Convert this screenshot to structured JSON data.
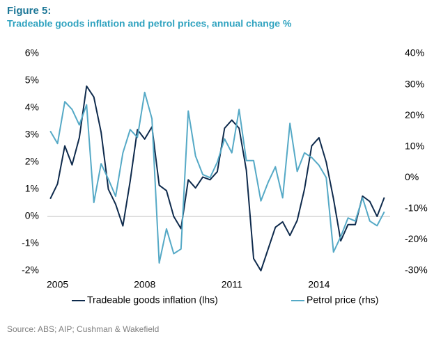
{
  "chart_data": {
    "type": "line",
    "title": "Figure 5:",
    "subtitle": "Tradeable goods inflation and petrol prices, annual change %",
    "source": "Source: ABS; AIP; Cushman & Wakefield",
    "x": [
      2004.75,
      2005,
      2005.25,
      2005.5,
      2005.75,
      2006,
      2006.25,
      2006.5,
      2006.75,
      2007,
      2007.25,
      2007.5,
      2007.75,
      2008,
      2008.25,
      2008.5,
      2008.75,
      2009,
      2009.25,
      2009.5,
      2009.75,
      2010,
      2010.25,
      2010.5,
      2010.75,
      2011,
      2011.25,
      2011.5,
      2011.75,
      2012,
      2012.25,
      2012.5,
      2012.75,
      2013,
      2013.25,
      2013.5,
      2013.75,
      2014,
      2014.25,
      2014.5,
      2014.75,
      2015,
      2015.25,
      2015.5,
      2015.75,
      2016,
      2016.25
    ],
    "xlim": [
      2004.65,
      2016.45
    ],
    "xticks": [
      2005,
      2008,
      2011,
      2014
    ],
    "ylim": [
      -2,
      6
    ],
    "yticks": [
      {
        "value": -2,
        "label": "-2%"
      },
      {
        "value": -1,
        "label": "-1%"
      },
      {
        "value": 0,
        "label": "0%"
      },
      {
        "value": 1,
        "label": "1%"
      },
      {
        "value": 2,
        "label": "2%"
      },
      {
        "value": 3,
        "label": "3%"
      },
      {
        "value": 4,
        "label": "4%"
      },
      {
        "value": 5,
        "label": "5%"
      },
      {
        "value": 6,
        "label": "6%"
      }
    ],
    "y2lim": [
      -30,
      40
    ],
    "y2ticks": [
      {
        "value": -30,
        "label": "-30%"
      },
      {
        "value": -20,
        "label": "-20%"
      },
      {
        "value": -10,
        "label": "-10%"
      },
      {
        "value": 0,
        "label": "0%"
      },
      {
        "value": 10,
        "label": "10%"
      },
      {
        "value": 20,
        "label": "20%"
      },
      {
        "value": 30,
        "label": "30%"
      },
      {
        "value": 40,
        "label": "40%"
      }
    ],
    "legend": "bottom",
    "series": [
      {
        "name": "Tradeable goods inflation (lhs)",
        "color": "#0e2a4c",
        "axis": "y",
        "values": [
          0.65,
          1.2,
          2.6,
          1.9,
          2.9,
          4.8,
          4.4,
          3.1,
          1.0,
          0.45,
          -0.35,
          1.3,
          3.2,
          2.85,
          3.3,
          1.15,
          0.95,
          0,
          -0.45,
          1.35,
          1.05,
          1.45,
          1.35,
          1.65,
          3.25,
          3.55,
          3.25,
          1.7,
          -1.55,
          -2.0,
          -1.2,
          -0.4,
          -0.2,
          -0.7,
          -0.15,
          1.0,
          2.6,
          2.9,
          2.0,
          0.65,
          -0.9,
          -0.3,
          -0.3,
          0.75,
          0.55,
          0,
          0.7
        ]
      },
      {
        "name": "Petrol price (rhs)",
        "color": "#55a9c6",
        "axis": "y2",
        "values": [
          15,
          11,
          24.5,
          22,
          17,
          23.5,
          -8,
          4.5,
          -0.5,
          -6,
          8,
          15.5,
          13,
          27.5,
          19,
          -27.5,
          -16.5,
          -24.5,
          -23,
          21.5,
          7,
          1,
          0,
          5,
          12.5,
          8,
          22,
          5.5,
          5.5,
          -7.5,
          -1.5,
          3.5,
          -6.5,
          17.5,
          2,
          8,
          6.5,
          4,
          0,
          -24,
          -19,
          -13,
          -14,
          -6.5,
          -14,
          -15.5,
          -11
        ]
      }
    ]
  }
}
